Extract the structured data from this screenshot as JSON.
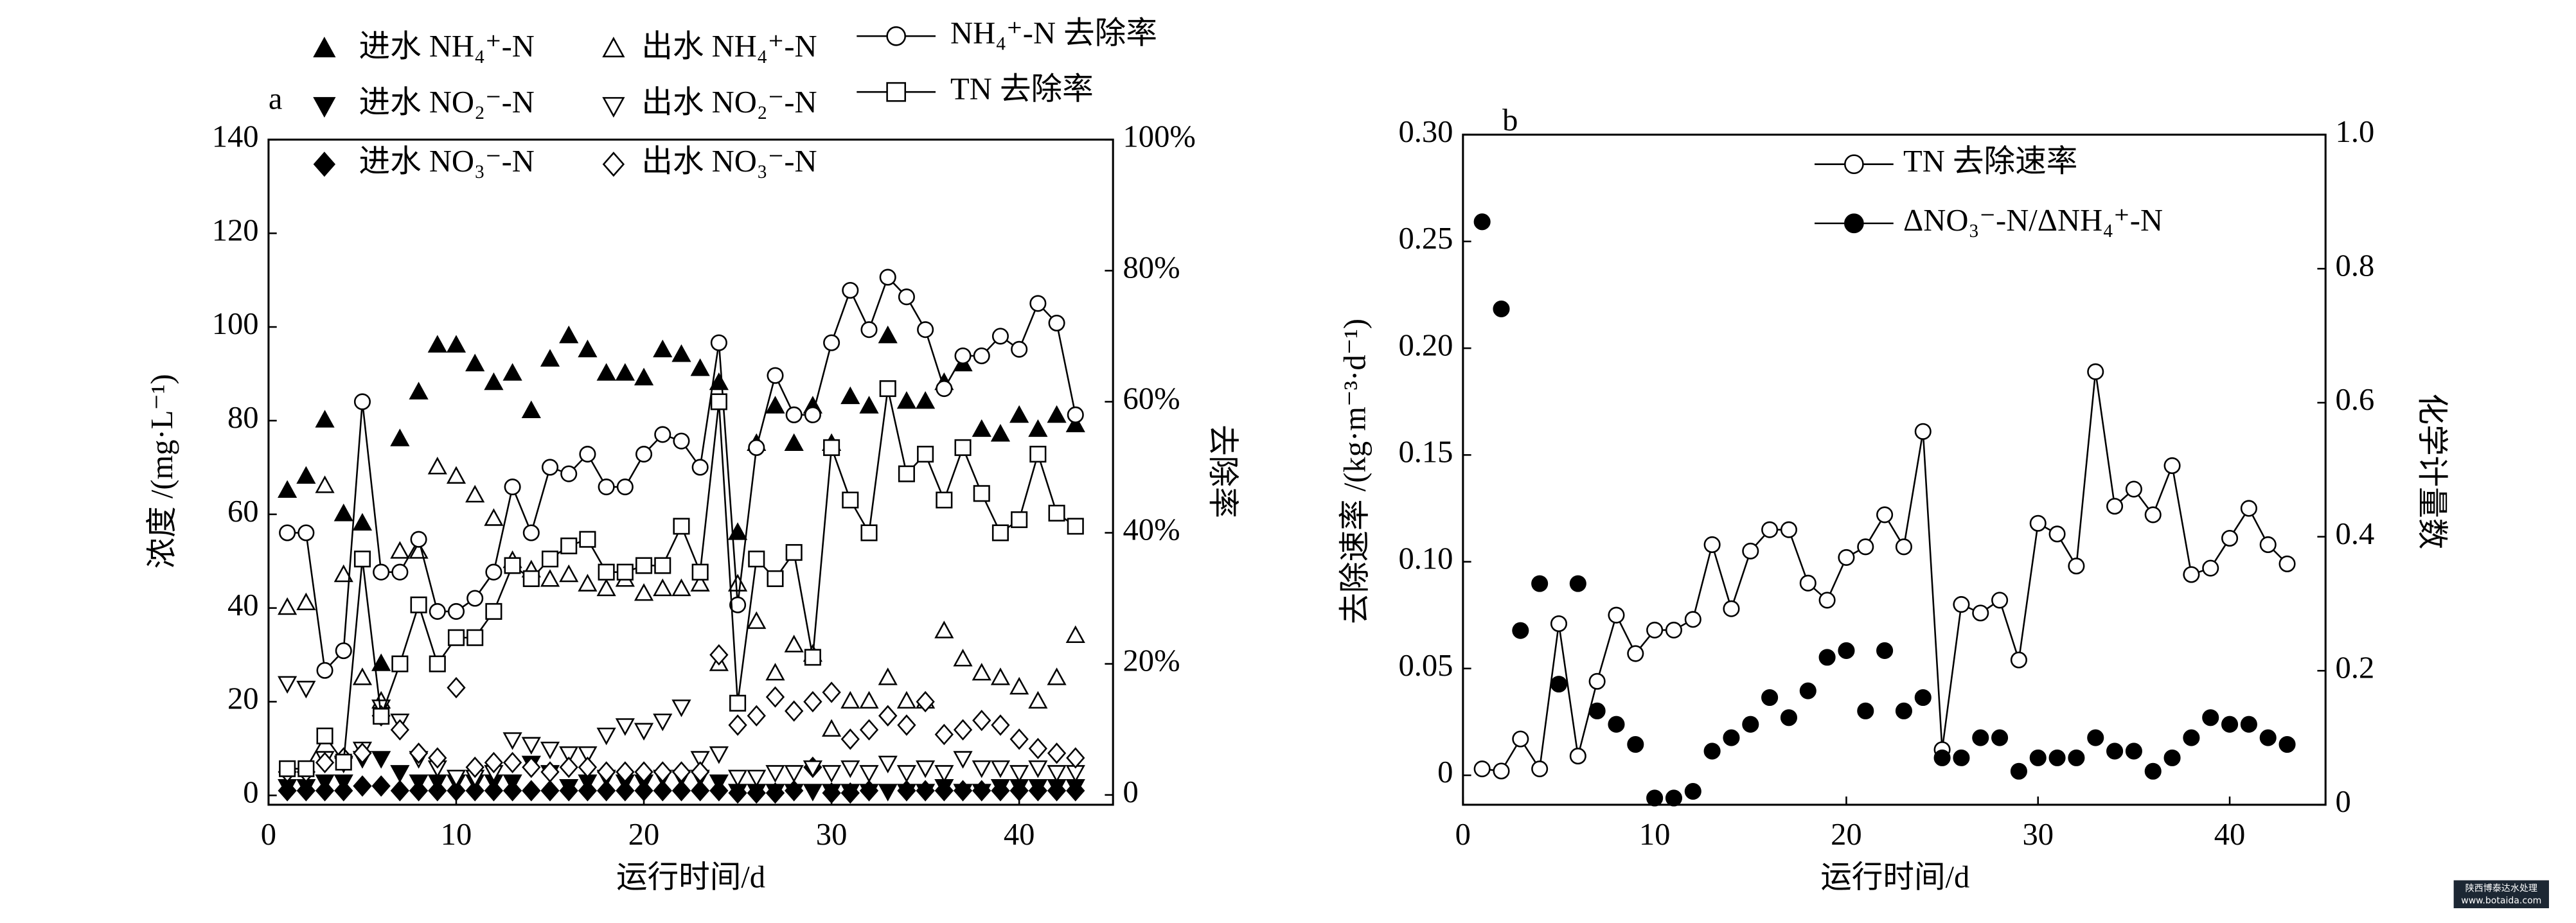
{
  "chart_data": [
    {
      "type": "line",
      "panel": "a",
      "x_label": "运行时间/d",
      "y_label": "浓度 /(mg·L⁻¹)",
      "y2_label": "去除率",
      "x": [
        1,
        2,
        3,
        4,
        5,
        6,
        7,
        8,
        9,
        10,
        11,
        12,
        13,
        14,
        15,
        16,
        17,
        18,
        19,
        20,
        21,
        22,
        23,
        24,
        25,
        26,
        27,
        28,
        29,
        30,
        31,
        32,
        33,
        34,
        35,
        36,
        37,
        38,
        39,
        40,
        41,
        42,
        43
      ],
      "xlim": [
        0,
        45
      ],
      "xticks": [
        0,
        10,
        20,
        30,
        40
      ],
      "ylim": [
        -2,
        140
      ],
      "yticks": [
        0,
        20,
        40,
        60,
        80,
        100,
        120,
        140
      ],
      "y2lim": [
        -1.5,
        100
      ],
      "y2ticks": [
        0,
        {
          "value": 20,
          "label": "20%"
        },
        {
          "value": 40,
          "label": "40%"
        },
        {
          "value": 60,
          "label": "60%"
        },
        {
          "value": 80,
          "label": "80%"
        },
        {
          "value": 100,
          "label": "100%"
        }
      ],
      "series": [
        {
          "name": "进水 NH₄⁺-N",
          "color": "#000000",
          "marker": "triangle-up",
          "filled": true,
          "line": false,
          "values": [
            65,
            68,
            80,
            60,
            58,
            28,
            76,
            86,
            96,
            96,
            92,
            88,
            90,
            82,
            93,
            98,
            95,
            90,
            90,
            89,
            95,
            94,
            91,
            88,
            56,
            75,
            83,
            75,
            83,
            75,
            85,
            83,
            98,
            84,
            84,
            88,
            92,
            78,
            77,
            81,
            78,
            81,
            79
          ]
        },
        {
          "name": "进水 NO₂⁻-N",
          "color": "#000000",
          "marker": "triangle-down",
          "filled": true,
          "line": false,
          "values": [
            2,
            2,
            3,
            3,
            8,
            8,
            5,
            3,
            3,
            3,
            3,
            3,
            3,
            7,
            5,
            2,
            3,
            4,
            3,
            3,
            4,
            4,
            4,
            3,
            1,
            1,
            1,
            1,
            1,
            1,
            1,
            1,
            1,
            1,
            1,
            2,
            1,
            1,
            2,
            2,
            2,
            2,
            2
          ]
        },
        {
          "name": "进水 NO₃⁻-N",
          "color": "#000000",
          "marker": "diamond",
          "filled": true,
          "line": false,
          "values": [
            1,
            1,
            1,
            1,
            2,
            2,
            1,
            1,
            1,
            1,
            1,
            1,
            1,
            1,
            1,
            1,
            1,
            1,
            1,
            1,
            1,
            1,
            1,
            1,
            0.5,
            0.5,
            0.5,
            1,
            6,
            0.5,
            0.5,
            1,
            17,
            1,
            1,
            1,
            1,
            1,
            1,
            1,
            1,
            1,
            1
          ]
        },
        {
          "name": "出水 NH₄⁺-N",
          "color": "#000000",
          "marker": "triangle-up",
          "filled": false,
          "line": false,
          "values": [
            40,
            41,
            66,
            47,
            25,
            20,
            52,
            52,
            70,
            68,
            64,
            59,
            50,
            48,
            46,
            47,
            45,
            44,
            46,
            43,
            44,
            44,
            45,
            28,
            45,
            37,
            26,
            32,
            30,
            14,
            20,
            20,
            25,
            20,
            20,
            35,
            29,
            26,
            25,
            23,
            20,
            25,
            34
          ]
        },
        {
          "name": "出水 NO₂⁻-N",
          "color": "#000000",
          "marker": "triangle-down",
          "filled": false,
          "line": false,
          "values": [
            24,
            23,
            8,
            7,
            10,
            19,
            16,
            8,
            6,
            4,
            4,
            5,
            12,
            11,
            10,
            9,
            9,
            13,
            15,
            14,
            16,
            19,
            8,
            9,
            4,
            4,
            5,
            5,
            6,
            5,
            6,
            5,
            7,
            5,
            6,
            5,
            8,
            6,
            6,
            5,
            6,
            5,
            5
          ]
        },
        {
          "name": "出水 NO₃⁻-N",
          "color": "#000000",
          "marker": "diamond",
          "filled": false,
          "line": false,
          "values": [
            5,
            5,
            7,
            8,
            9,
            17,
            14,
            9,
            8,
            23,
            6,
            7,
            7,
            6,
            5,
            6,
            6,
            5,
            5,
            5,
            5,
            5,
            5,
            30,
            15,
            17,
            21,
            18,
            20,
            22,
            12,
            14,
            17,
            15,
            20,
            13,
            14,
            16,
            15,
            12,
            10,
            9,
            8
          ]
        },
        {
          "name": "NH₄⁺-N 去除率",
          "color": "#000000",
          "marker": "circle",
          "filled": false,
          "line": true,
          "axis": "y2",
          "values": [
            40,
            40,
            19,
            22,
            60,
            34,
            34,
            39,
            28,
            28,
            30,
            34,
            47,
            40,
            50,
            49,
            52,
            47,
            47,
            52,
            55,
            54,
            50,
            69,
            29,
            53,
            64,
            58,
            58,
            69,
            77,
            71,
            79,
            76,
            71,
            62,
            67,
            67,
            70,
            68,
            75,
            72,
            58
          ]
        },
        {
          "name": "TN 去除率",
          "color": "#000000",
          "marker": "square",
          "filled": false,
          "line": true,
          "axis": "y2",
          "values": [
            4,
            4,
            9,
            5,
            36,
            12,
            20,
            29,
            20,
            24,
            24,
            28,
            35,
            33,
            36,
            38,
            39,
            34,
            34,
            35,
            35,
            41,
            34,
            60,
            14,
            36,
            33,
            37,
            21,
            53,
            45,
            40,
            62,
            49,
            52,
            45,
            53,
            46,
            40,
            42,
            52,
            43,
            41
          ]
        }
      ]
    },
    {
      "type": "line",
      "panel": "b",
      "x_label": "运行时间/d",
      "y_label": "去除速率 /(kg·m⁻³·d⁻¹)",
      "y2_label": "化学计量数",
      "x": [
        1,
        2,
        3,
        4,
        5,
        6,
        7,
        8,
        9,
        10,
        11,
        12,
        13,
        14,
        15,
        16,
        17,
        18,
        19,
        20,
        21,
        22,
        23,
        24,
        25,
        26,
        27,
        28,
        29,
        30,
        31,
        32,
        33,
        34,
        35,
        36,
        37,
        38,
        39,
        40,
        41,
        42,
        43
      ],
      "xlim": [
        0,
        45
      ],
      "xticks": [
        0,
        10,
        20,
        30,
        40
      ],
      "ylim": [
        -0.0138,
        0.3
      ],
      "yticks": [
        0,
        0.05,
        {
          "value": 0.1,
          "label": "0.10"
        },
        0.15,
        {
          "value": 0.2,
          "label": "0.20"
        },
        0.25,
        {
          "value": 0.3,
          "label": "0.30"
        }
      ],
      "y2lim": [
        0,
        1
      ],
      "y2ticks": [
        0,
        0.2,
        0.4,
        0.6,
        0.8,
        {
          "value": 1,
          "label": "1.0"
        }
      ],
      "series": [
        {
          "name": "TN 去除速率",
          "color": "#000000",
          "marker": "circle",
          "filled": false,
          "line": true,
          "values": [
            0.003,
            0.002,
            0.017,
            0.003,
            0.071,
            0.009,
            0.044,
            0.075,
            0.057,
            0.068,
            0.068,
            0.073,
            0.108,
            0.078,
            0.105,
            0.115,
            0.115,
            0.09,
            0.082,
            0.102,
            0.107,
            0.122,
            0.107,
            0.161,
            0.012,
            0.08,
            0.076,
            0.082,
            0.054,
            0.118,
            0.113,
            0.098,
            0.189,
            0.126,
            0.134,
            0.122,
            0.145,
            0.094,
            0.097,
            0.111,
            0.125,
            0.108,
            0.099
          ]
        },
        {
          "name": "ΔNO₃⁻-N/ΔNH₄⁺-N",
          "color": "#000000",
          "marker": "circle",
          "filled": true,
          "line": false,
          "axis": "y2",
          "values": [
            0.87,
            0.74,
            0.26,
            0.33,
            0.18,
            0.33,
            0.14,
            0.12,
            0.09,
            0.01,
            0.01,
            0.02,
            0.08,
            0.1,
            0.12,
            0.16,
            0.13,
            0.17,
            0.22,
            0.23,
            0.14,
            0.23,
            0.14,
            0.16,
            0.07,
            0.07,
            0.1,
            0.1,
            0.05,
            0.07,
            0.07,
            0.07,
            0.1,
            0.08,
            0.08,
            0.05,
            0.07,
            0.1,
            0.13,
            0.12,
            0.12,
            0.1,
            0.09
          ]
        }
      ]
    }
  ],
  "watermark": [
    "陕西博泰达水处理",
    "www.botaida.com"
  ]
}
